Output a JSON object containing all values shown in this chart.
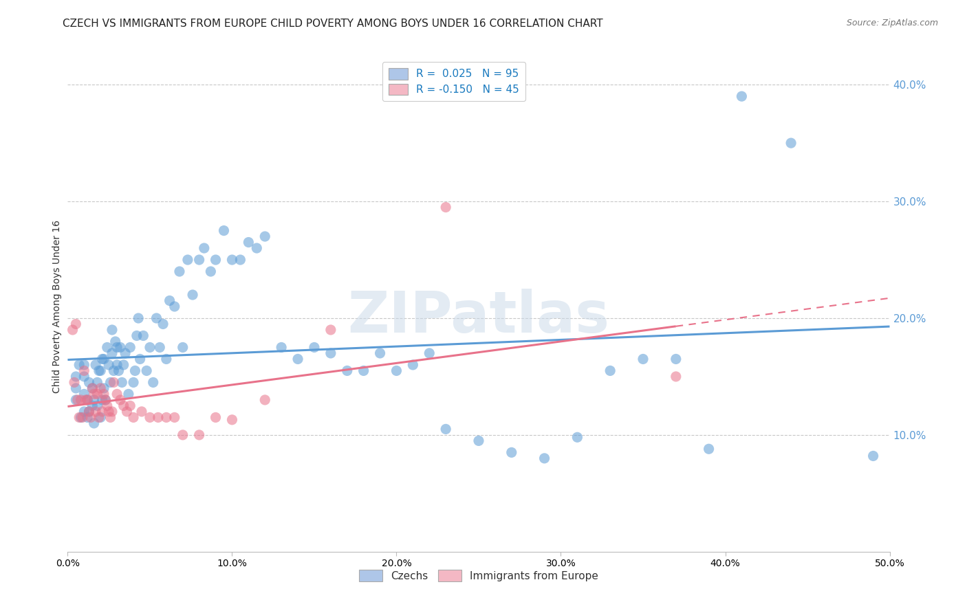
{
  "title": "CZECH VS IMMIGRANTS FROM EUROPE CHILD POVERTY AMONG BOYS UNDER 16 CORRELATION CHART",
  "source": "Source: ZipAtlas.com",
  "ylabel": "Child Poverty Among Boys Under 16",
  "xlim": [
    0.0,
    0.5
  ],
  "ylim": [
    0.0,
    0.42
  ],
  "xticks": [
    0.0,
    0.1,
    0.2,
    0.3,
    0.4,
    0.5
  ],
  "yticks": [
    0.1,
    0.2,
    0.3,
    0.4
  ],
  "ytick_labels_right": [
    "10.0%",
    "20.0%",
    "30.0%",
    "40.0%"
  ],
  "xtick_labels": [
    "0.0%",
    "10.0%",
    "20.0%",
    "30.0%",
    "40.0%",
    "50.0%"
  ],
  "blue_color": "#5b9bd5",
  "blue_fill": "#aec6e8",
  "pink_color": "#e8728a",
  "pink_fill": "#f4b8c4",
  "blue_R": 0.025,
  "blue_N": 95,
  "pink_R": -0.15,
  "pink_N": 45,
  "czechs_x": [
    0.005,
    0.005,
    0.005,
    0.007,
    0.008,
    0.01,
    0.01,
    0.01,
    0.01,
    0.012,
    0.012,
    0.013,
    0.013,
    0.015,
    0.015,
    0.016,
    0.016,
    0.017,
    0.018,
    0.018,
    0.019,
    0.02,
    0.02,
    0.021,
    0.021,
    0.022,
    0.022,
    0.023,
    0.024,
    0.025,
    0.026,
    0.027,
    0.027,
    0.028,
    0.029,
    0.03,
    0.03,
    0.031,
    0.032,
    0.033,
    0.034,
    0.035,
    0.037,
    0.038,
    0.04,
    0.041,
    0.042,
    0.043,
    0.044,
    0.046,
    0.048,
    0.05,
    0.052,
    0.054,
    0.056,
    0.058,
    0.06,
    0.062,
    0.065,
    0.068,
    0.07,
    0.073,
    0.076,
    0.08,
    0.083,
    0.087,
    0.09,
    0.095,
    0.1,
    0.105,
    0.11,
    0.115,
    0.12,
    0.13,
    0.14,
    0.15,
    0.16,
    0.17,
    0.18,
    0.19,
    0.2,
    0.21,
    0.22,
    0.23,
    0.25,
    0.27,
    0.29,
    0.31,
    0.33,
    0.35,
    0.37,
    0.39,
    0.41,
    0.44,
    0.49
  ],
  "czechs_y": [
    0.13,
    0.14,
    0.15,
    0.16,
    0.115,
    0.12,
    0.135,
    0.15,
    0.16,
    0.115,
    0.13,
    0.12,
    0.145,
    0.125,
    0.14,
    0.11,
    0.13,
    0.16,
    0.125,
    0.145,
    0.155,
    0.115,
    0.155,
    0.13,
    0.165,
    0.14,
    0.165,
    0.13,
    0.175,
    0.16,
    0.145,
    0.17,
    0.19,
    0.155,
    0.18,
    0.16,
    0.175,
    0.155,
    0.175,
    0.145,
    0.16,
    0.17,
    0.135,
    0.175,
    0.145,
    0.155,
    0.185,
    0.2,
    0.165,
    0.185,
    0.155,
    0.175,
    0.145,
    0.2,
    0.175,
    0.195,
    0.165,
    0.215,
    0.21,
    0.24,
    0.175,
    0.25,
    0.22,
    0.25,
    0.26,
    0.24,
    0.25,
    0.275,
    0.25,
    0.25,
    0.265,
    0.26,
    0.27,
    0.175,
    0.165,
    0.175,
    0.17,
    0.155,
    0.155,
    0.17,
    0.155,
    0.16,
    0.17,
    0.105,
    0.095,
    0.085,
    0.08,
    0.098,
    0.155,
    0.165,
    0.165,
    0.088,
    0.39,
    0.35,
    0.082
  ],
  "immig_x": [
    0.003,
    0.004,
    0.005,
    0.006,
    0.007,
    0.008,
    0.009,
    0.01,
    0.011,
    0.012,
    0.013,
    0.014,
    0.015,
    0.016,
    0.017,
    0.018,
    0.019,
    0.02,
    0.021,
    0.022,
    0.023,
    0.024,
    0.025,
    0.026,
    0.027,
    0.028,
    0.03,
    0.032,
    0.034,
    0.036,
    0.038,
    0.04,
    0.045,
    0.05,
    0.055,
    0.06,
    0.065,
    0.07,
    0.08,
    0.09,
    0.1,
    0.12,
    0.16,
    0.23,
    0.37
  ],
  "immig_y": [
    0.19,
    0.145,
    0.195,
    0.13,
    0.115,
    0.13,
    0.115,
    0.155,
    0.13,
    0.13,
    0.12,
    0.115,
    0.14,
    0.135,
    0.12,
    0.135,
    0.115,
    0.14,
    0.12,
    0.135,
    0.13,
    0.125,
    0.12,
    0.115,
    0.12,
    0.145,
    0.135,
    0.13,
    0.125,
    0.12,
    0.125,
    0.115,
    0.12,
    0.115,
    0.115,
    0.115,
    0.115,
    0.1,
    0.1,
    0.115,
    0.113,
    0.13,
    0.19,
    0.295,
    0.15
  ],
  "watermark": "ZIPatlas",
  "background_color": "#ffffff",
  "grid_color": "#c8c8c8",
  "title_fontsize": 11,
  "axis_label_fontsize": 10,
  "legend_R_color": "#1a7abf",
  "legend_N_color": "#1a7abf"
}
